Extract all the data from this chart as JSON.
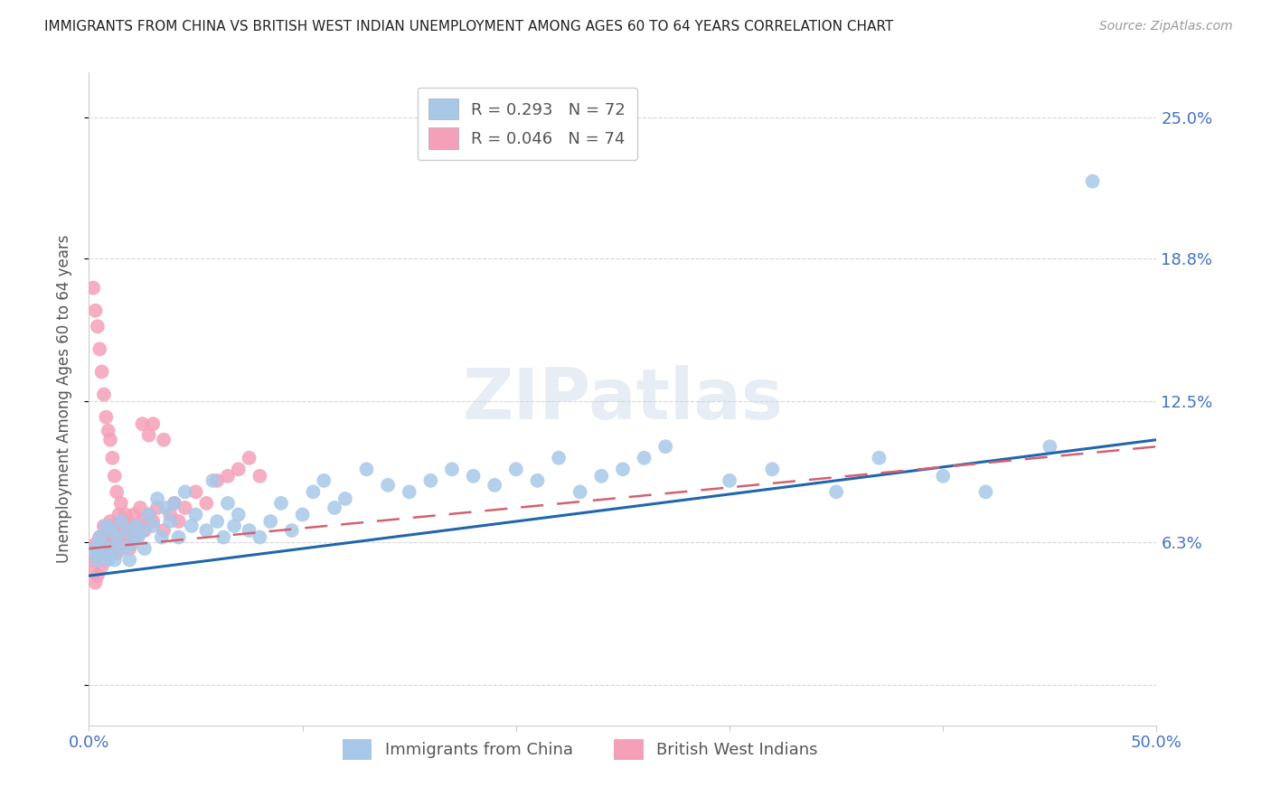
{
  "title": "IMMIGRANTS FROM CHINA VS BRITISH WEST INDIAN UNEMPLOYMENT AMONG AGES 60 TO 64 YEARS CORRELATION CHART",
  "source": "Source: ZipAtlas.com",
  "ylabel": "Unemployment Among Ages 60 to 64 years",
  "xlim": [
    0.0,
    0.5
  ],
  "ylim": [
    -0.018,
    0.27
  ],
  "ytick_vals": [
    0.0,
    0.063,
    0.125,
    0.188,
    0.25
  ],
  "ytick_labels": [
    "",
    "6.3%",
    "12.5%",
    "18.8%",
    "25.0%"
  ],
  "xtick_vals": [
    0.0,
    0.1,
    0.2,
    0.3,
    0.4,
    0.5
  ],
  "xtick_labels": [
    "0.0%",
    "",
    "",
    "",
    "",
    "50.0%"
  ],
  "china_color": "#a8c8e8",
  "bwi_color": "#f4a0b8",
  "china_line_color": "#2166ac",
  "bwi_line_color": "#d46070",
  "watermark": "ZIPatlas",
  "china_line_start_y": 0.048,
  "china_line_end_y": 0.108,
  "bwi_line_start_y": 0.06,
  "bwi_line_end_y": 0.105,
  "china_scatter_x": [
    0.002,
    0.003,
    0.004,
    0.005,
    0.006,
    0.007,
    0.008,
    0.009,
    0.01,
    0.011,
    0.012,
    0.013,
    0.015,
    0.016,
    0.018,
    0.019,
    0.02,
    0.022,
    0.023,
    0.025,
    0.026,
    0.028,
    0.03,
    0.032,
    0.034,
    0.036,
    0.038,
    0.04,
    0.042,
    0.045,
    0.048,
    0.05,
    0.055,
    0.058,
    0.06,
    0.063,
    0.065,
    0.068,
    0.07,
    0.075,
    0.08,
    0.085,
    0.09,
    0.095,
    0.1,
    0.105,
    0.11,
    0.115,
    0.12,
    0.13,
    0.14,
    0.15,
    0.16,
    0.17,
    0.18,
    0.19,
    0.2,
    0.21,
    0.22,
    0.23,
    0.24,
    0.25,
    0.26,
    0.27,
    0.3,
    0.32,
    0.35,
    0.37,
    0.4,
    0.42,
    0.45,
    0.47
  ],
  "china_scatter_y": [
    0.06,
    0.058,
    0.055,
    0.065,
    0.062,
    0.058,
    0.07,
    0.055,
    0.068,
    0.06,
    0.055,
    0.065,
    0.072,
    0.06,
    0.068,
    0.055,
    0.062,
    0.07,
    0.065,
    0.068,
    0.06,
    0.075,
    0.07,
    0.082,
    0.065,
    0.078,
    0.072,
    0.08,
    0.065,
    0.085,
    0.07,
    0.075,
    0.068,
    0.09,
    0.072,
    0.065,
    0.08,
    0.07,
    0.075,
    0.068,
    0.065,
    0.072,
    0.08,
    0.068,
    0.075,
    0.085,
    0.09,
    0.078,
    0.082,
    0.095,
    0.088,
    0.085,
    0.09,
    0.095,
    0.092,
    0.088,
    0.095,
    0.09,
    0.1,
    0.085,
    0.092,
    0.095,
    0.1,
    0.105,
    0.09,
    0.095,
    0.085,
    0.1,
    0.092,
    0.085,
    0.105,
    0.222
  ],
  "bwi_scatter_x": [
    0.001,
    0.002,
    0.002,
    0.003,
    0.003,
    0.004,
    0.004,
    0.005,
    0.005,
    0.006,
    0.006,
    0.007,
    0.007,
    0.008,
    0.008,
    0.009,
    0.009,
    0.01,
    0.01,
    0.011,
    0.011,
    0.012,
    0.012,
    0.013,
    0.013,
    0.014,
    0.015,
    0.015,
    0.016,
    0.017,
    0.018,
    0.019,
    0.02,
    0.021,
    0.022,
    0.023,
    0.024,
    0.025,
    0.026,
    0.028,
    0.03,
    0.032,
    0.035,
    0.038,
    0.04,
    0.042,
    0.045,
    0.05,
    0.055,
    0.06,
    0.065,
    0.07,
    0.075,
    0.08,
    0.002,
    0.003,
    0.004,
    0.005,
    0.006,
    0.007,
    0.008,
    0.009,
    0.01,
    0.011,
    0.012,
    0.013,
    0.015,
    0.017,
    0.019,
    0.021,
    0.025,
    0.028,
    0.03,
    0.035
  ],
  "bwi_scatter_y": [
    0.055,
    0.05,
    0.058,
    0.045,
    0.062,
    0.055,
    0.048,
    0.065,
    0.058,
    0.052,
    0.06,
    0.055,
    0.07,
    0.065,
    0.058,
    0.062,
    0.068,
    0.058,
    0.072,
    0.065,
    0.058,
    0.062,
    0.07,
    0.065,
    0.058,
    0.075,
    0.07,
    0.062,
    0.068,
    0.065,
    0.072,
    0.06,
    0.068,
    0.075,
    0.065,
    0.07,
    0.078,
    0.072,
    0.068,
    0.075,
    0.072,
    0.078,
    0.068,
    0.075,
    0.08,
    0.072,
    0.078,
    0.085,
    0.08,
    0.09,
    0.092,
    0.095,
    0.1,
    0.092,
    0.175,
    0.165,
    0.158,
    0.148,
    0.138,
    0.128,
    0.118,
    0.112,
    0.108,
    0.1,
    0.092,
    0.085,
    0.08,
    0.075,
    0.07,
    0.065,
    0.115,
    0.11,
    0.115,
    0.108
  ]
}
